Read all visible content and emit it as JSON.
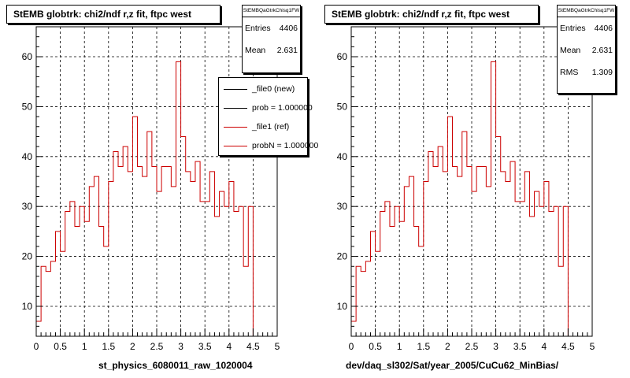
{
  "chart_data": [
    {
      "type": "histogram",
      "title": "StEMB globtrk: chi2/ndf r,z fit, ftpc west",
      "xlabel": "st_physics_6080011_raw_1020004",
      "xlim": [
        0,
        5
      ],
      "ylim": [
        4,
        66
      ],
      "xticks": [
        "0",
        "0.5",
        "1",
        "1.5",
        "2",
        "2.5",
        "3",
        "3.5",
        "4",
        "4.5",
        "5"
      ],
      "yticks": [
        "10",
        "20",
        "30",
        "40",
        "50",
        "60"
      ],
      "grid": true,
      "bin_width": 0.1,
      "values": [
        7,
        18,
        17,
        19,
        25,
        21,
        29,
        31,
        26,
        30,
        27,
        34,
        36,
        26,
        22,
        35,
        41,
        38,
        42,
        37,
        48,
        38,
        36,
        45,
        38,
        33,
        38,
        38,
        34,
        59,
        44,
        37,
        35,
        39,
        31,
        31,
        37,
        28,
        33,
        30,
        35,
        29,
        30,
        18,
        30
      ],
      "line_color": "#cc0000",
      "stats": {
        "name": "StEMBQaGtrkChisq1FW",
        "rows": [
          {
            "label": "Entries",
            "value": "4406"
          },
          {
            "label": "Mean",
            "value": "2.631"
          }
        ]
      },
      "legend": {
        "placement": "top-right",
        "entries": [
          {
            "label": "_file0 (new)",
            "color": "#000000"
          },
          {
            "label": "prob = 1.000000",
            "color": "#000000"
          },
          {
            "label": "_file1 (ref)",
            "color": "#cc0000"
          },
          {
            "label": "probN = 1.000000",
            "color": "#cc0000"
          }
        ]
      }
    },
    {
      "type": "histogram",
      "title": "StEMB globtrk: chi2/ndf r,z fit, ftpc west",
      "xlabel": "dev/daq_sl302/Sat/year_2005/CuCu62_MinBias/",
      "xlim": [
        0,
        5
      ],
      "ylim": [
        4,
        66
      ],
      "xticks": [
        "0",
        "0.5",
        "1",
        "1.5",
        "2",
        "2.5",
        "3",
        "3.5",
        "4",
        "4.5",
        "5"
      ],
      "yticks": [
        "10",
        "20",
        "30",
        "40",
        "50",
        "60"
      ],
      "grid": true,
      "bin_width": 0.1,
      "values": [
        7,
        18,
        17,
        19,
        25,
        21,
        29,
        31,
        26,
        30,
        27,
        34,
        36,
        26,
        22,
        35,
        41,
        38,
        42,
        37,
        48,
        38,
        36,
        45,
        38,
        33,
        38,
        38,
        34,
        59,
        44,
        37,
        35,
        39,
        31,
        31,
        37,
        28,
        33,
        30,
        35,
        29,
        30,
        18,
        30
      ],
      "line_color": "#cc0000",
      "stats": {
        "name": "StEMBQaGtrkChisq1FW",
        "rows": [
          {
            "label": "Entries",
            "value": "4406"
          },
          {
            "label": "Mean",
            "value": "2.631"
          },
          {
            "label": "RMS",
            "value": "1.309"
          }
        ]
      }
    }
  ]
}
